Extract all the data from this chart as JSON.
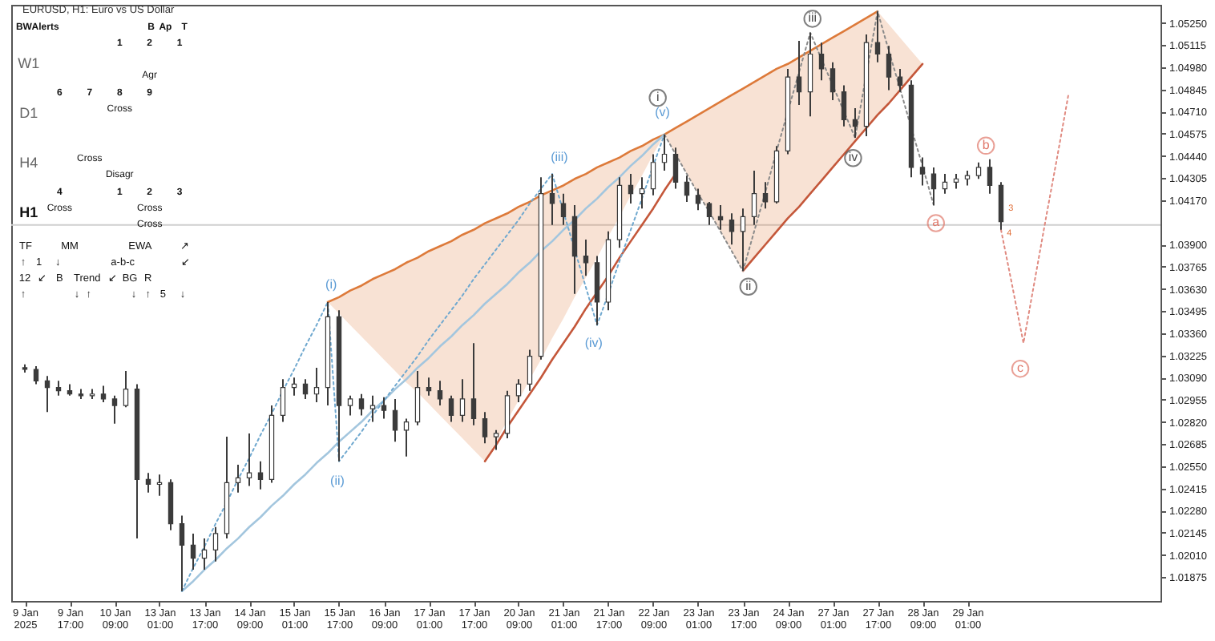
{
  "chart_data": {
    "type": "candlestick",
    "title": "EURUSD, H1: Euro vs US Dollar",
    "color": "#3b3b3b",
    "ylim": [
      1.0173,
      1.0536
    ],
    "categories": [
      "9 Jan 2025",
      null,
      null,
      null,
      "9 Jan 17:00",
      null,
      null,
      null,
      "10 Jan 09:00",
      null,
      null,
      null,
      "13 Jan 01:00",
      null,
      null,
      null,
      "13 Jan 17:00",
      null,
      null,
      null,
      "14 Jan 09:00",
      null,
      null,
      null,
      "15 Jan 01:00",
      null,
      null,
      null,
      "15 Jan 17:00",
      null,
      null,
      null,
      "16 Jan 09:00",
      null,
      null,
      null,
      "17 Jan 01:00",
      null,
      null,
      null,
      "17 Jan 17:00",
      null,
      null,
      null,
      "20 Jan 09:00",
      null,
      null,
      null,
      "21 Jan 01:00",
      null,
      null,
      null,
      "21 Jan 17:00",
      null,
      null,
      null,
      "22 Jan 09:00",
      null,
      null,
      null,
      "23 Jan 01:00",
      null,
      null,
      null,
      "23 Jan 17:00",
      null,
      null,
      null,
      "24 Jan 09:00",
      null,
      null,
      null,
      "27 Jan 01:00",
      null,
      null,
      null,
      "27 Jan 17:00",
      null,
      null,
      null,
      "28 Jan 09:00",
      null,
      null,
      null,
      "29 Jan 01:00",
      null,
      null,
      null,
      null,
      null,
      null,
      null,
      null,
      null,
      null,
      null,
      null,
      null,
      null,
      null,
      null
    ],
    "yticks": [
      {
        "value": 1.0525,
        "label": "1.05250"
      },
      1.05115,
      {
        "value": 1.0498,
        "label": "1.04980"
      },
      1.04845,
      {
        "value": 1.0471,
        "label": "1.04710"
      },
      1.04575,
      {
        "value": 1.0444,
        "label": "1.04440"
      },
      1.04305,
      {
        "value": 1.0417,
        "label": "1.04170"
      },
      {
        "value": 1.039,
        "label": "1.03900"
      },
      1.03765,
      {
        "value": 1.0363,
        "label": "1.03630"
      },
      1.03495,
      {
        "value": 1.0336,
        "label": "1.03360"
      },
      1.03225,
      {
        "value": 1.0309,
        "label": "1.03090"
      },
      1.02955,
      {
        "value": 1.0282,
        "label": "1.02820"
      },
      1.02685,
      {
        "value": 1.0255,
        "label": "1.02550"
      },
      1.02415,
      {
        "value": 1.0228,
        "label": "1.02280"
      },
      1.02145,
      {
        "value": 1.0201,
        "label": "1.02010"
      },
      1.01875
    ],
    "ohlc": [
      [
        1.0315,
        1.0317,
        1.0312,
        1.0314
      ],
      [
        1.0314,
        1.0316,
        1.0305,
        1.0307
      ],
      [
        1.0307,
        1.031,
        1.0288,
        1.0303
      ],
      [
        1.0303,
        1.0307,
        1.0298,
        1.0301
      ],
      [
        1.0301,
        1.0305,
        1.0298,
        1.0299
      ],
      [
        1.0299,
        1.0302,
        1.0296,
        1.0298
      ],
      [
        1.0298,
        1.0302,
        1.0296,
        1.0299
      ],
      [
        1.0299,
        1.0304,
        1.0294,
        1.0296
      ],
      [
        1.0296,
        1.0298,
        1.0281,
        1.0292
      ],
      [
        1.0292,
        1.0313,
        1.0291,
        1.0302
      ],
      [
        1.0302,
        1.0305,
        1.0211,
        1.0247
      ],
      [
        1.0247,
        1.0251,
        1.0239,
        1.0244
      ],
      [
        1.0244,
        1.025,
        1.0237,
        1.0245
      ],
      [
        1.0245,
        1.0247,
        1.0216,
        1.022
      ],
      [
        1.022,
        1.0225,
        1.0179,
        1.0207
      ],
      [
        1.0207,
        1.0214,
        1.0192,
        1.0199
      ],
      [
        1.0199,
        1.0211,
        1.0192,
        1.0204
      ],
      [
        1.0204,
        1.0218,
        1.0197,
        1.0214
      ],
      [
        1.0214,
        1.0273,
        1.0211,
        1.0245
      ],
      [
        1.0245,
        1.0256,
        1.0239,
        1.0248
      ],
      [
        1.0248,
        1.0275,
        1.0243,
        1.0251
      ],
      [
        1.0251,
        1.0258,
        1.0241,
        1.0247
      ],
      [
        1.0247,
        1.0292,
        1.0245,
        1.0286
      ],
      [
        1.0286,
        1.0308,
        1.0282,
        1.0303
      ],
      [
        1.0303,
        1.0309,
        1.0298,
        1.0305
      ],
      [
        1.0305,
        1.0308,
        1.0296,
        1.0299
      ],
      [
        1.0299,
        1.0315,
        1.0294,
        1.0303
      ],
      [
        1.0303,
        1.0355,
        1.0292,
        1.0346
      ],
      [
        1.0346,
        1.035,
        1.0258,
        1.0292
      ],
      [
        1.0292,
        1.0298,
        1.0286,
        1.0296
      ],
      [
        1.0296,
        1.0299,
        1.0286,
        1.029
      ],
      [
        1.029,
        1.0298,
        1.0282,
        1.0292
      ],
      [
        1.0292,
        1.0297,
        1.0284,
        1.0289
      ],
      [
        1.0289,
        1.0296,
        1.027,
        1.0277
      ],
      [
        1.0277,
        1.0284,
        1.0261,
        1.0282
      ],
      [
        1.0282,
        1.0313,
        1.028,
        1.0303
      ],
      [
        1.0303,
        1.0309,
        1.0298,
        1.0301
      ],
      [
        1.0301,
        1.0307,
        1.0292,
        1.0296
      ],
      [
        1.0296,
        1.0298,
        1.0282,
        1.0286
      ],
      [
        1.0286,
        1.0308,
        1.0282,
        1.0296
      ],
      [
        1.0296,
        1.033,
        1.028,
        1.0284
      ],
      [
        1.0284,
        1.0288,
        1.0269,
        1.0273
      ],
      [
        1.0273,
        1.0277,
        1.0265,
        1.0275
      ],
      [
        1.0275,
        1.0301,
        1.0272,
        1.0298
      ],
      [
        1.0298,
        1.0308,
        1.0294,
        1.0305
      ],
      [
        1.0305,
        1.0326,
        1.0301,
        1.0322
      ],
      [
        1.0322,
        1.0431,
        1.032,
        1.0421
      ],
      [
        1.0421,
        1.0433,
        1.0402,
        1.0415
      ],
      [
        1.0415,
        1.0421,
        1.0402,
        1.0407
      ],
      [
        1.0407,
        1.0414,
        1.036,
        1.0383
      ],
      [
        1.0383,
        1.0393,
        1.0371,
        1.0379
      ],
      [
        1.0379,
        1.0383,
        1.0341,
        1.0355
      ],
      [
        1.0355,
        1.0398,
        1.035,
        1.0393
      ],
      [
        1.0393,
        1.0431,
        1.0388,
        1.0426
      ],
      [
        1.0426,
        1.0433,
        1.0415,
        1.0421
      ],
      [
        1.0421,
        1.0431,
        1.0412,
        1.0424
      ],
      [
        1.0424,
        1.0445,
        1.042,
        1.044
      ],
      [
        1.044,
        1.0457,
        1.0435,
        1.0445
      ],
      [
        1.0445,
        1.0449,
        1.0424,
        1.0428
      ],
      [
        1.0428,
        1.0432,
        1.0416,
        1.042
      ],
      [
        1.042,
        1.0424,
        1.0411,
        1.0415
      ],
      [
        1.0415,
        1.0416,
        1.0402,
        1.0407
      ],
      [
        1.0407,
        1.0414,
        1.0399,
        1.0405
      ],
      [
        1.0405,
        1.0409,
        1.039,
        1.0398
      ],
      [
        1.0398,
        1.0412,
        1.0374,
        1.0407
      ],
      [
        1.0407,
        1.0435,
        1.0402,
        1.0421
      ],
      [
        1.0421,
        1.0428,
        1.0412,
        1.0416
      ],
      [
        1.0416,
        1.045,
        1.0415,
        1.0447
      ],
      [
        1.0447,
        1.0497,
        1.0445,
        1.0492
      ],
      [
        1.0492,
        1.0514,
        1.0475,
        1.0483
      ],
      [
        1.0483,
        1.0519,
        1.0468,
        1.0506
      ],
      [
        1.0506,
        1.0513,
        1.049,
        1.0497
      ],
      [
        1.0497,
        1.0501,
        1.0478,
        1.0483
      ],
      [
        1.0483,
        1.0487,
        1.0462,
        1.0466
      ],
      [
        1.0466,
        1.0473,
        1.0455,
        1.0462
      ],
      [
        1.0462,
        1.0518,
        1.0456,
        1.0513
      ],
      [
        1.0513,
        1.0532,
        1.0501,
        1.0506
      ],
      [
        1.0506,
        1.0511,
        1.0484,
        1.0492
      ],
      [
        1.0492,
        1.0497,
        1.0483,
        1.0487
      ],
      [
        1.0487,
        1.049,
        1.0431,
        1.0437
      ],
      [
        1.0437,
        1.0443,
        1.0426,
        1.0433
      ],
      [
        1.0433,
        1.0437,
        1.0414,
        1.0424
      ],
      [
        1.0424,
        1.0433,
        1.0421,
        1.0428
      ],
      [
        1.0428,
        1.0433,
        1.0424,
        1.043
      ],
      [
        1.043,
        1.0435,
        1.0426,
        1.0432
      ],
      [
        1.0432,
        1.044,
        1.043,
        1.0437
      ],
      [
        1.0437,
        1.0442,
        1.0421,
        1.0426
      ],
      [
        1.0426,
        1.0428,
        1.0399,
        1.0404
      ],
      null,
      null,
      null,
      null,
      null,
      null,
      null,
      null,
      null,
      null,
      null,
      null,
      null
    ],
    "series": [
      {
        "type": "line",
        "color": "#dd7a3a",
        "line_style": "solid",
        "values": [
          null,
          null,
          null,
          null,
          null,
          null,
          null,
          null,
          null,
          null,
          null,
          null,
          null,
          null,
          null,
          null,
          null,
          null,
          null,
          null,
          null,
          null,
          null,
          null,
          null,
          null,
          null,
          1.0355,
          1.0358,
          1.0362,
          1.0365,
          1.0369,
          1.0372,
          1.0375,
          1.0379,
          1.0382,
          1.0386,
          1.0389,
          1.0392,
          1.0396,
          1.0399,
          1.0403,
          1.0406,
          1.0409,
          1.0413,
          1.0416,
          1.042,
          1.0423,
          1.0426,
          1.043,
          1.0433,
          1.0437,
          1.044,
          1.0443,
          1.0447,
          1.045,
          1.0454,
          1.0457,
          1.0461,
          1.0465,
          1.0469,
          1.0473,
          1.0477,
          1.0481,
          1.0485,
          1.0489,
          1.0493,
          1.0497,
          1.05,
          1.0504,
          1.0508,
          1.0512,
          1.0516,
          1.052,
          1.0524,
          1.0528,
          1.0532,
          null,
          null,
          null,
          null,
          null,
          null,
          null,
          null,
          null,
          null,
          null,
          null,
          null,
          null,
          null,
          null,
          null,
          null,
          null,
          null,
          null,
          null,
          null,
          null
        ],
        "lower": [
          null,
          null,
          null,
          null,
          null,
          null,
          null,
          null,
          null,
          null,
          null,
          null,
          null,
          null,
          null,
          null,
          null,
          null,
          null,
          null,
          null,
          null,
          null,
          null,
          null,
          null,
          null,
          1.0355,
          1.0348,
          1.0341,
          1.0334,
          1.0327,
          1.032,
          1.0313,
          1.0306,
          1.03,
          1.0293,
          1.0286,
          1.0279,
          1.0272,
          1.0265,
          1.0258,
          1.027,
          1.0283,
          1.0295,
          1.0308,
          1.032,
          1.0333,
          1.0345,
          1.0358,
          1.037,
          1.0382,
          1.0395,
          1.0407,
          1.042,
          1.0432,
          1.0445,
          1.0457,
          1.0445,
          1.0433,
          1.0421,
          1.041,
          1.0398,
          1.0386,
          1.0374,
          1.0382,
          1.039,
          1.0398,
          1.0406,
          1.0413,
          1.0421,
          1.0429,
          1.0437,
          1.0445,
          1.0453,
          1.0461,
          1.0469,
          1.0476,
          1.0484,
          1.0492,
          1.05,
          null,
          null,
          null,
          null,
          null,
          null,
          null,
          null,
          null,
          null,
          null,
          null,
          null,
          null,
          null,
          null,
          null,
          null,
          null,
          null
        ],
        "upper": [
          null,
          null,
          null,
          null,
          null,
          null,
          null,
          null,
          null,
          null,
          null,
          null,
          null,
          null,
          null,
          null,
          null,
          null,
          null,
          null,
          null,
          null,
          null,
          null,
          null,
          null,
          null,
          1.0355,
          1.0358,
          1.0362,
          1.0365,
          1.0369,
          1.0372,
          1.0375,
          1.0379,
          1.0382,
          1.0386,
          1.0389,
          1.0392,
          1.0396,
          1.0399,
          1.0403,
          1.0406,
          1.0409,
          1.0413,
          1.0416,
          1.042,
          1.0423,
          1.0426,
          1.043,
          1.0433,
          1.0437,
          1.044,
          1.0443,
          1.0447,
          1.045,
          1.0454,
          1.0457,
          1.0461,
          1.0465,
          1.0469,
          1.0473,
          1.0477,
          1.0481,
          1.0485,
          1.0489,
          1.0493,
          1.0497,
          1.05,
          1.0504,
          1.0508,
          1.0512,
          1.0516,
          1.052,
          1.0524,
          1.0528,
          1.0532,
          1.0524,
          1.0516,
          1.0508,
          1.05,
          null,
          null,
          null,
          null,
          null,
          null,
          null,
          null,
          null,
          null,
          null,
          null,
          null,
          null,
          null,
          null,
          null,
          null,
          null,
          null
        ]
      },
      {
        "type": "line",
        "color": "#c4573a",
        "line_style": "solid",
        "values": [
          null,
          null,
          null,
          null,
          null,
          null,
          null,
          null,
          null,
          null,
          null,
          null,
          null,
          null,
          null,
          null,
          null,
          null,
          null,
          null,
          null,
          null,
          null,
          null,
          null,
          null,
          null,
          null,
          null,
          null,
          null,
          null,
          null,
          null,
          null,
          null,
          null,
          null,
          null,
          null,
          null,
          1.0258,
          1.0268,
          1.0279,
          1.0289,
          1.0299,
          1.0309,
          1.032,
          1.033,
          1.034,
          1.0351,
          1.0361,
          1.0371,
          1.0382,
          1.0392,
          1.0402,
          1.0412,
          1.0423,
          1.0433,
          null,
          null,
          null,
          null,
          null,
          null,
          null,
          null,
          null,
          null,
          null,
          null,
          null,
          null,
          null,
          null,
          null,
          null,
          null,
          null,
          null,
          null,
          null,
          null,
          null,
          null,
          null,
          null,
          null,
          null,
          null,
          null,
          null,
          null,
          null,
          null,
          null,
          null,
          null,
          null,
          null,
          null
        ]
      },
      {
        "type": "line",
        "color": "#c4573a",
        "line_style": "solid",
        "values": [
          null,
          null,
          null,
          null,
          null,
          null,
          null,
          null,
          null,
          null,
          null,
          null,
          null,
          null,
          null,
          null,
          null,
          null,
          null,
          null,
          null,
          null,
          null,
          null,
          null,
          null,
          null,
          null,
          null,
          null,
          null,
          null,
          null,
          null,
          null,
          null,
          null,
          null,
          null,
          null,
          null,
          null,
          null,
          null,
          null,
          null,
          null,
          null,
          null,
          null,
          null,
          null,
          null,
          null,
          null,
          null,
          null,
          null,
          null,
          null,
          null,
          null,
          null,
          null,
          1.0374,
          1.0382,
          1.039,
          1.0398,
          1.0406,
          1.0413,
          1.0421,
          1.0429,
          1.0437,
          1.0445,
          1.0453,
          1.0461,
          1.0469,
          1.0476,
          1.0484,
          1.0492,
          1.05,
          null,
          null,
          null,
          null,
          null,
          null,
          null,
          null,
          null,
          null,
          null,
          null,
          null,
          null,
          null,
          null,
          null,
          null,
          null,
          null
        ]
      },
      {
        "type": "line",
        "color": "#a3c6de",
        "line_style": "solid",
        "values": [
          null,
          null,
          null,
          null,
          null,
          null,
          null,
          null,
          null,
          null,
          null,
          null,
          null,
          null,
          1.0179,
          1.0185,
          1.0192,
          1.0198,
          1.0205,
          1.0211,
          1.0218,
          1.0224,
          1.0231,
          1.0237,
          1.0244,
          1.025,
          1.0257,
          1.0263,
          1.027,
          1.0276,
          1.0282,
          1.0289,
          1.0295,
          1.0302,
          1.0308,
          1.0315,
          1.0321,
          1.0328,
          1.0334,
          1.0341,
          1.0347,
          1.0354,
          1.036,
          1.0366,
          1.0373,
          1.0379,
          1.0386,
          1.0392,
          1.0399,
          1.0405,
          1.0412,
          1.0418,
          1.0425,
          1.0431,
          1.0438,
          1.0444,
          1.0451,
          1.0457,
          null,
          null,
          null,
          null,
          null,
          null,
          null,
          null,
          null,
          null,
          null,
          null,
          null,
          null,
          null,
          null,
          null,
          null,
          null,
          null,
          null,
          null,
          null,
          null,
          null,
          null,
          null,
          null,
          null,
          null,
          null,
          null,
          null,
          null,
          null,
          null,
          null,
          null,
          null,
          null,
          null,
          null,
          null
        ]
      },
      {
        "type": "line",
        "color": "#6fa8cf",
        "line_style": "dotted",
        "values": [
          null,
          null,
          null,
          null,
          null,
          null,
          null,
          null,
          null,
          null,
          null,
          null,
          null,
          null,
          1.0179,
          1.0193,
          1.0206,
          1.022,
          1.0233,
          1.0247,
          1.026,
          1.0274,
          1.0287,
          1.0301,
          1.0314,
          1.0328,
          1.0341,
          1.0355,
          1.0258,
          1.0267,
          1.0276,
          1.0286,
          1.0295,
          1.0304,
          1.0313,
          1.0322,
          1.0332,
          1.0341,
          1.035,
          1.0359,
          1.0369,
          1.0378,
          1.0387,
          1.0396,
          1.0405,
          1.0415,
          1.0424,
          1.0433,
          1.041,
          1.0387,
          1.0364,
          1.0341,
          1.036,
          1.038,
          1.0399,
          1.0418,
          1.0438,
          1.0457,
          null,
          null,
          null,
          null,
          null,
          null,
          null,
          null,
          null,
          null,
          null,
          null,
          null,
          null,
          null,
          null,
          null,
          null,
          null,
          null,
          null,
          null,
          null,
          null,
          null,
          null,
          null,
          null,
          null,
          null,
          null,
          null,
          null,
          null,
          null,
          null,
          null,
          null,
          null,
          null,
          null,
          null,
          null
        ]
      },
      {
        "type": "line",
        "color": "#8a8a8a",
        "line_style": "dotted",
        "values": [
          null,
          null,
          null,
          null,
          null,
          null,
          null,
          null,
          null,
          null,
          null,
          null,
          null,
          null,
          null,
          null,
          null,
          null,
          null,
          null,
          null,
          null,
          null,
          null,
          null,
          null,
          null,
          null,
          null,
          null,
          null,
          null,
          null,
          null,
          null,
          null,
          null,
          null,
          null,
          null,
          null,
          null,
          null,
          null,
          null,
          null,
          null,
          null,
          null,
          null,
          null,
          null,
          null,
          null,
          null,
          null,
          null,
          1.0457,
          1.0445,
          1.0433,
          1.0421,
          1.041,
          1.0398,
          1.0386,
          1.0374,
          1.0398,
          1.0422,
          1.0447,
          1.0471,
          1.0495,
          1.0519,
          1.0503,
          1.0487,
          1.0471,
          1.0455,
          1.0494,
          1.0532,
          1.0508,
          1.0485,
          1.0461,
          1.0438,
          1.0414,
          null,
          null,
          null,
          null,
          null,
          null,
          null,
          null,
          null,
          null,
          null,
          null,
          null,
          null,
          null,
          null,
          null,
          null,
          null
        ]
      },
      {
        "type": "line",
        "color": "#e08a80",
        "line_style": "dotted",
        "values": [
          null,
          null,
          null,
          null,
          null,
          null,
          null,
          null,
          null,
          null,
          null,
          null,
          null,
          null,
          null,
          null,
          null,
          null,
          null,
          null,
          null,
          null,
          null,
          null,
          null,
          null,
          null,
          null,
          null,
          null,
          null,
          null,
          null,
          null,
          null,
          null,
          null,
          null,
          null,
          null,
          null,
          null,
          null,
          null,
          null,
          null,
          null,
          null,
          null,
          null,
          null,
          null,
          null,
          null,
          null,
          null,
          null,
          null,
          null,
          null,
          null,
          null,
          null,
          null,
          null,
          null,
          null,
          null,
          null,
          null,
          null,
          null,
          null,
          null,
          null,
          null,
          null,
          null,
          null,
          null,
          null,
          null,
          null,
          null,
          null,
          null,
          null,
          1.0399,
          1.0365,
          1.033,
          1.0368,
          1.0406,
          1.0443,
          1.0481,
          null,
          null,
          null,
          null,
          null,
          null,
          null
        ]
      }
    ],
    "ref_lines": [
      {
        "axis": "y",
        "value": 1.0402,
        "color": "#cfcfcf"
      }
    ],
    "annotations": [
      "(i)",
      "(ii)",
      "(iii)",
      "(iv)",
      "(v)",
      "i",
      "ii",
      "iii",
      "iv",
      "a",
      "b",
      "c",
      "3",
      "4",
      "BW",
      "Alerts",
      "B",
      "Ap",
      "T",
      "W1",
      "1",
      "2",
      "1",
      "Agr",
      "D1",
      "6",
      "7",
      "8",
      "9",
      "Cross",
      "H4",
      "Cross",
      "Disagr",
      "H1",
      "4",
      "1",
      "2",
      "3",
      "Cross",
      "Cross",
      "Cross",
      "TF",
      "MM",
      "EWA",
      "↗",
      "↑",
      "1",
      "↓",
      "a-b-c",
      "↙",
      "12",
      "↙",
      "B",
      "Trend",
      "↙",
      "BG",
      "R",
      "↑",
      "↓",
      "↑",
      "↓",
      "↑",
      "5",
      "↓"
    ]
  }
}
